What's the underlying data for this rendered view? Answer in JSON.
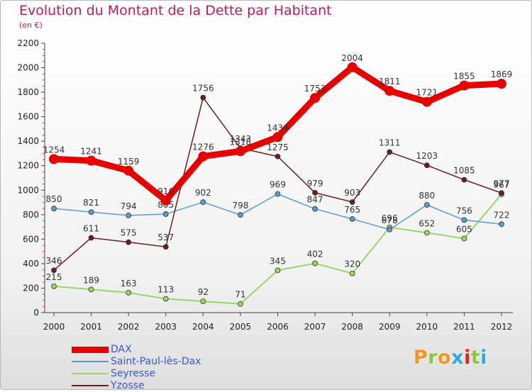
{
  "title": "Evolution du Montant de la Dette par Habitant",
  "unit_label": "(en €)",
  "logo": {
    "text": "Proxiti",
    "colors": [
      "#f7941d",
      "#8dc63f",
      "#f7941d",
      "#29abe2",
      "#ed1c24",
      "#8dc63f",
      "#29abe2"
    ]
  },
  "chart_data": {
    "type": "line",
    "title": "Evolution du Montant de la Dette par Habitant",
    "xlabel": "",
    "ylabel": "(en €)",
    "x": [
      "2000",
      "2001",
      "2002",
      "2003",
      "2004",
      "2005",
      "2006",
      "2007",
      "2008",
      "2009",
      "2010",
      "2011",
      "2012"
    ],
    "ylim": [
      0,
      2200
    ],
    "yticks": [
      0,
      200,
      400,
      600,
      800,
      1000,
      1200,
      1400,
      1600,
      1800,
      2000,
      2200
    ],
    "grid": false,
    "legend_position": "bottom-left",
    "series": [
      {
        "name": "DAX",
        "color": "#e60000",
        "values": [
          1254,
          1241,
          1159,
          916,
          1276,
          1318,
          1434,
          1753,
          2004,
          1811,
          1721,
          1855,
          1869
        ]
      },
      {
        "name": "Saint-Paul-lès-Dax",
        "color": "#5b9bd5",
        "values": [
          850,
          821,
          794,
          805,
          902,
          798,
          969,
          847,
          765,
          678,
          880,
          756,
          722
        ]
      },
      {
        "name": "Seyresse",
        "color": "#9bd469",
        "values": [
          215,
          189,
          163,
          113,
          92,
          71,
          345,
          402,
          320,
          696,
          652,
          605,
          967
        ]
      },
      {
        "name": "Yzosse",
        "color": "#6b1e1e",
        "values": [
          346,
          611,
          575,
          537,
          1756,
          1343,
          1275,
          979,
          903,
          1311,
          1203,
          1085,
          977
        ]
      }
    ]
  }
}
